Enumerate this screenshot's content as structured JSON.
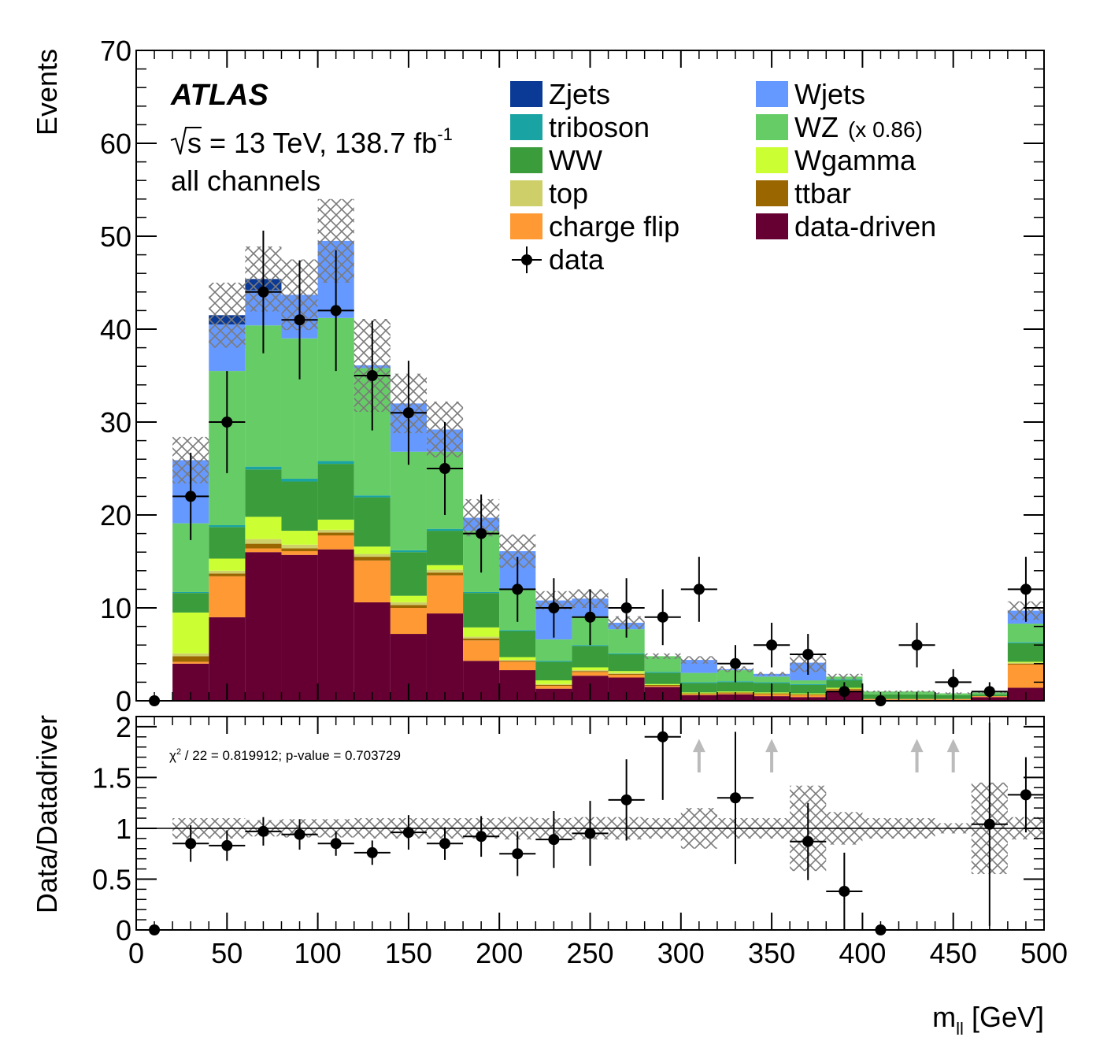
{
  "figure": {
    "experiment": "ATLAS",
    "energy_prefix": "s = 13 TeV, 138.7 fb",
    "energy_sup": "-1",
    "channel": "all channels"
  },
  "colors": {
    "Zjets": "#0a3a96",
    "triboson": "#1aa3a3",
    "WW": "#3a9c3a",
    "top": "#cfcf6a",
    "charge flip": "#ff9933",
    "Wjets": "#6699ff",
    "WZ": "#66cc66",
    "Wgamma": "#ccff33",
    "ttbar": "#996600",
    "data-driven": "#660033",
    "uncertainty": "#7a7a7a",
    "arrow": "#bbbbbb"
  },
  "legend": [
    {
      "key": "Zjets",
      "label": "Zjets",
      "suffix": ""
    },
    {
      "key": "Wjets",
      "label": "Wjets",
      "suffix": ""
    },
    {
      "key": "triboson",
      "label": "triboson",
      "suffix": ""
    },
    {
      "key": "WZ",
      "label": "WZ",
      "suffix": "(x 0.86)"
    },
    {
      "key": "WW",
      "label": "WW",
      "suffix": ""
    },
    {
      "key": "Wgamma",
      "label": "Wgamma",
      "suffix": ""
    },
    {
      "key": "top",
      "label": "top",
      "suffix": ""
    },
    {
      "key": "ttbar",
      "label": "ttbar",
      "suffix": ""
    },
    {
      "key": "charge flip",
      "label": "charge flip",
      "suffix": ""
    },
    {
      "key": "data-driven",
      "label": "data-driven",
      "suffix": ""
    },
    {
      "key": "data",
      "label": "data",
      "suffix": ""
    }
  ],
  "chart_data": [
    {
      "type": "bar",
      "subtype": "stacked-histogram",
      "ylabel": "Events",
      "ylim": [
        0,
        70
      ],
      "yticks": [
        0,
        10,
        20,
        30,
        40,
        50,
        60,
        70
      ],
      "xlim": [
        0,
        500
      ],
      "bin_edges": [
        0,
        20,
        40,
        60,
        80,
        100,
        120,
        140,
        160,
        180,
        200,
        220,
        240,
        260,
        280,
        300,
        320,
        340,
        360,
        380,
        400,
        420,
        440,
        460,
        480,
        500
      ],
      "stack_order": [
        "data-driven",
        "charge flip",
        "ttbar",
        "top",
        "Wgamma",
        "WW",
        "triboson",
        "WZ",
        "Wjets",
        "Zjets"
      ],
      "series": [
        {
          "name": "data-driven",
          "values": [
            0,
            4.0,
            9.0,
            16.0,
            15.7,
            16.3,
            10.6,
            7.2,
            9.4,
            4.3,
            3.3,
            1.3,
            2.7,
            2.5,
            1.5,
            0.6,
            0.7,
            0.5,
            0.4,
            1.1,
            0.1,
            0.1,
            0.1,
            0.4,
            1.4
          ]
        },
        {
          "name": "charge flip",
          "values": [
            0,
            0.2,
            4.4,
            0.4,
            0.4,
            1.5,
            4.5,
            2.8,
            4.1,
            2.2,
            0.9,
            0.3,
            0.4,
            0.3,
            0.1,
            0.1,
            0.1,
            0.2,
            0.2,
            0.1,
            0.1,
            0.1,
            0.1,
            0.1,
            2.5
          ]
        },
        {
          "name": "ttbar",
          "values": [
            0,
            0.6,
            0.3,
            0.5,
            0.3,
            0.3,
            0.4,
            0.3,
            0.3,
            0.2,
            0.1,
            0.1,
            0.1,
            0.1,
            0.1,
            0.1,
            0.1,
            0.1,
            0.1,
            0.1,
            0,
            0,
            0,
            0,
            0.1
          ]
        },
        {
          "name": "top",
          "values": [
            0,
            0.3,
            0.3,
            0.5,
            0.4,
            0.3,
            0.3,
            0.3,
            0.3,
            0.2,
            0.1,
            0.1,
            0.1,
            0.1,
            0,
            0,
            0,
            0,
            0,
            0,
            0,
            0,
            0,
            0,
            0.1
          ]
        },
        {
          "name": "Wgamma",
          "values": [
            0,
            4.4,
            1.3,
            2.4,
            1.5,
            1.1,
            0.8,
            0.7,
            0.5,
            1.0,
            0.3,
            0.4,
            0.3,
            0.2,
            0.1,
            0.1,
            0.1,
            0.1,
            0.1,
            0.1,
            0,
            0,
            0,
            0,
            0.1
          ]
        },
        {
          "name": "WW",
          "values": [
            0,
            2.1,
            3.4,
            5.1,
            5.3,
            6.0,
            5.3,
            4.7,
            3.7,
            3.7,
            2.8,
            2.0,
            2.3,
            1.8,
            1.2,
            1.0,
            1.0,
            1.0,
            0.9,
            0.8,
            0.5,
            0.5,
            0.4,
            0.2,
            2.0
          ]
        },
        {
          "name": "triboson",
          "values": [
            0,
            0.1,
            0.2,
            0.3,
            0.3,
            0.3,
            0.2,
            0.2,
            0.2,
            0.1,
            0.1,
            0.1,
            0.1,
            0.1,
            0.1,
            0.1,
            0.1,
            0.1,
            0.1,
            0.1,
            0,
            0,
            0,
            0,
            0.1
          ]
        },
        {
          "name": "WZ",
          "values": [
            0,
            7.4,
            16.6,
            15.2,
            15.1,
            15.4,
            13.7,
            10.6,
            8.3,
            6.6,
            4.4,
            2.3,
            3.1,
            2.6,
            1.7,
            1.0,
            1.2,
            0.6,
            0.4,
            0.3,
            0.3,
            0.3,
            0.2,
            0.2,
            2.0
          ]
        },
        {
          "name": "Wjets",
          "values": [
            0,
            6.8,
            5.0,
            3.8,
            4.7,
            8.3,
            0.3,
            5.2,
            2.4,
            1.4,
            4.1,
            4.2,
            1.9,
            0.7,
            0,
            1.4,
            0.1,
            0.3,
            1.9,
            0,
            0,
            0,
            0,
            0,
            1.4
          ]
        },
        {
          "name": "Zjets",
          "values": [
            0,
            0,
            1.0,
            1.2,
            0,
            0,
            0,
            0,
            0,
            0,
            0,
            0,
            0,
            0,
            0,
            0,
            0,
            0,
            0,
            0,
            0,
            0,
            0,
            0,
            0
          ]
        }
      ],
      "mc_uncertainty": [
        0,
        2.5,
        3.5,
        3.5,
        3.8,
        4.5,
        5.0,
        3.2,
        3.0,
        2.0,
        1.8,
        1.0,
        1.0,
        0.7,
        0.3,
        0.4,
        0.3,
        0.2,
        1.0,
        0.3,
        0.1,
        0.1,
        0.1,
        0.1,
        1.0
      ],
      "data": {
        "x": [
          10,
          30,
          50,
          70,
          90,
          110,
          130,
          150,
          170,
          190,
          210,
          230,
          250,
          270,
          290,
          310,
          330,
          350,
          370,
          390,
          410,
          430,
          450,
          470,
          490
        ],
        "y": [
          0,
          22,
          30,
          44,
          41,
          42,
          35,
          31,
          25,
          18,
          12,
          10,
          9,
          10,
          9,
          12,
          4,
          6,
          5,
          1,
          0,
          6,
          2,
          1,
          12
        ],
        "yerr": [
          0,
          4.7,
          5.5,
          6.6,
          6.4,
          6.5,
          5.9,
          5.6,
          5.0,
          4.2,
          3.5,
          3.2,
          3.0,
          3.2,
          3.0,
          3.5,
          2.0,
          2.4,
          2.2,
          1.0,
          0,
          2.4,
          1.4,
          1.0,
          3.5
        ]
      }
    },
    {
      "type": "scatter",
      "subtype": "ratio",
      "ylabel": "Data/Datadriver",
      "xlabel_main": "m",
      "xlabel_sub": "ll",
      "xlabel_unit": " [GeV]",
      "ylim": [
        0,
        2.1
      ],
      "yticks": [
        0,
        0.5,
        1,
        1.5,
        2
      ],
      "ytick_labels": [
        "0",
        "0.5",
        "1",
        "1.5",
        "2"
      ],
      "xticks": [
        0,
        50,
        100,
        150,
        200,
        250,
        300,
        350,
        400,
        450,
        500
      ],
      "xtick_labels": [
        "0",
        "50",
        "100",
        "150",
        "200",
        "250",
        "300",
        "350",
        "400",
        "450",
        "500"
      ],
      "annotation": "/ 22 = 0.819912; p-value = 0.703729",
      "reference_line": 1,
      "x": [
        10,
        30,
        50,
        70,
        90,
        110,
        130,
        150,
        170,
        190,
        210,
        230,
        250,
        270,
        290,
        310,
        330,
        350,
        370,
        390,
        410,
        430,
        450,
        470,
        490
      ],
      "y": [
        0,
        0.85,
        0.83,
        0.97,
        0.94,
        0.85,
        0.76,
        0.96,
        0.85,
        0.92,
        0.75,
        0.89,
        0.95,
        1.28,
        1.9,
        null,
        1.3,
        null,
        0.87,
        0.38,
        0,
        null,
        null,
        1.04,
        1.33
      ],
      "yerr": [
        0,
        0.18,
        0.15,
        0.14,
        0.15,
        0.12,
        0.12,
        0.17,
        0.16,
        0.2,
        0.22,
        0.28,
        0.32,
        0.4,
        0.62,
        0,
        0.65,
        0,
        0.38,
        0.38,
        0,
        0,
        0,
        1.0,
        0.37
      ],
      "uncertainty_band": [
        0,
        0.1,
        0.1,
        0.08,
        0.09,
        0.09,
        0.1,
        0.1,
        0.1,
        0.1,
        0.11,
        0.1,
        0.11,
        0.11,
        0.1,
        0.2,
        0.1,
        0.1,
        0.42,
        0.16,
        0.1,
        0.1,
        0.05,
        0.45,
        0.11
      ],
      "offscale_arrows": [
        310,
        350,
        430,
        450
      ]
    }
  ]
}
